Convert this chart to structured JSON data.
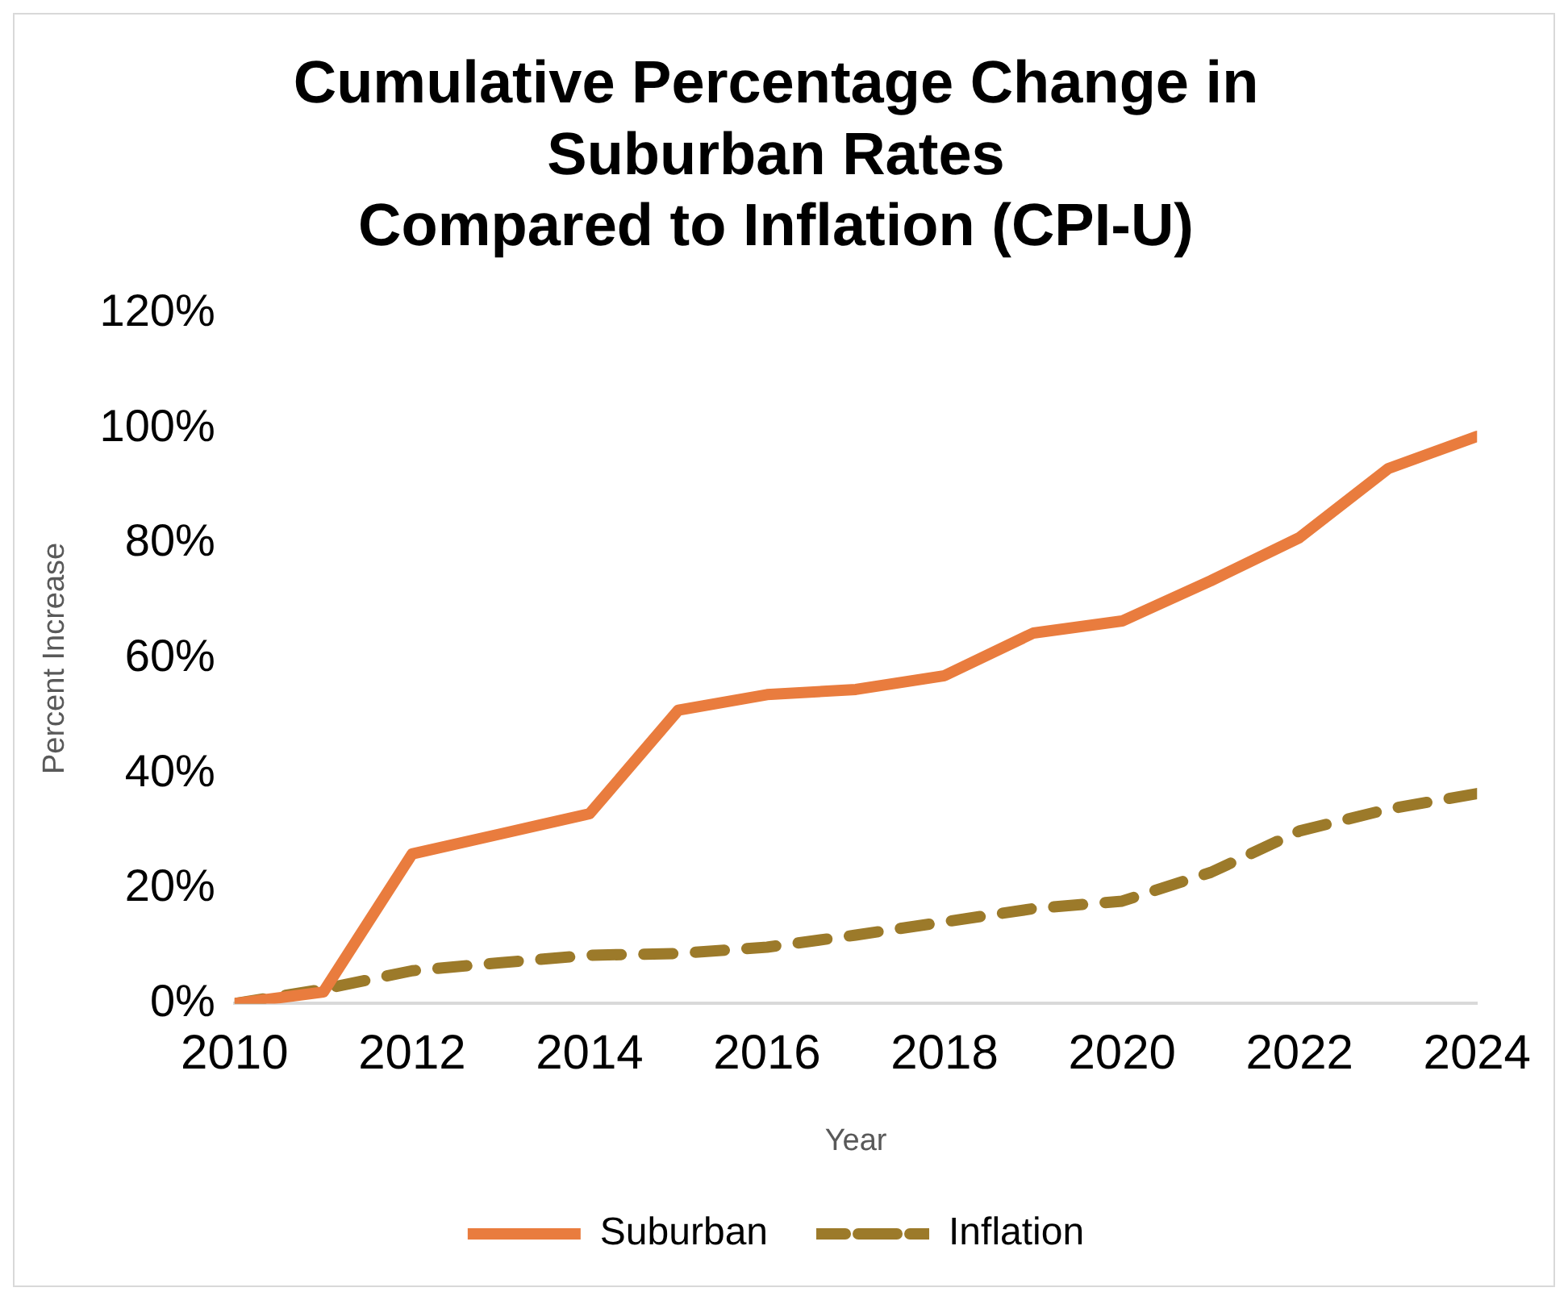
{
  "chart_data": {
    "type": "line",
    "title": [
      "Cumulative Percentage Change in",
      "Suburban Rates",
      "Compared to Inflation (CPI-U)"
    ],
    "xlabel": "Year",
    "ylabel": "Percent Increase",
    "x": [
      2010,
      2011,
      2012,
      2013,
      2014,
      2015,
      2016,
      2017,
      2018,
      2019,
      2020,
      2021,
      2022,
      2023,
      2024
    ],
    "series": [
      {
        "name": "Suburban",
        "color": "#e97c3e",
        "line_style": "solid",
        "values": [
          0,
          2,
          26,
          29.5,
          33,
          51,
          53.7,
          54.6,
          57,
          64.4,
          66.5,
          73.5,
          81,
          93,
          98.6
        ]
      },
      {
        "name": "Inflation",
        "color": "#9c7a2a",
        "line_style": "dashed",
        "values": [
          0,
          2.5,
          5.7,
          7.1,
          8.4,
          8.7,
          9.8,
          11.9,
          14.2,
          16.5,
          17.8,
          22.8,
          30,
          33.8,
          36.5
        ]
      }
    ],
    "xlim": [
      2010,
      2024
    ],
    "xticks": [
      2010,
      2012,
      2014,
      2016,
      2018,
      2020,
      2022,
      2024
    ],
    "ylim": [
      0,
      120
    ],
    "yticks": [
      {
        "value": 0,
        "label": "0%"
      },
      {
        "value": 20,
        "label": "20%"
      },
      {
        "value": 40,
        "label": "40%"
      },
      {
        "value": 60,
        "label": "60%"
      },
      {
        "value": 80,
        "label": "80%"
      },
      {
        "value": 100,
        "label": "100%"
      },
      {
        "value": 120,
        "label": "120%"
      }
    ],
    "grid": false,
    "legend": "bottom",
    "marker": "none"
  }
}
